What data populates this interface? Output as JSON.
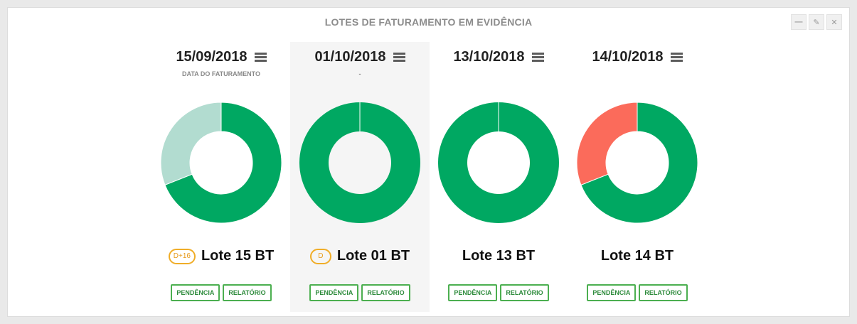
{
  "panel": {
    "title": "LOTES DE FATURAMENTO EM EVIDÊNCIA"
  },
  "window_controls": [
    {
      "icon": "minimize-icon",
      "glyph": "—"
    },
    {
      "icon": "wrench-icon",
      "glyph": "✎"
    },
    {
      "icon": "close-icon",
      "glyph": "✕"
    }
  ],
  "colors": {
    "green": "#00a862",
    "light_green": "#b2dcd0",
    "red": "#fb6b5b",
    "badge_orange": "#f0ad28"
  },
  "columns": [
    {
      "date": "15/09/2018",
      "subtitle": "DATA DO FATURAMENTO",
      "badge": "D+16",
      "lote": "Lote 15 BT",
      "pendencia": "PENDÊNCIA",
      "relatorio": "RELATÓRIO",
      "donut": [
        {
          "value": 0.69,
          "color": "#00a862"
        },
        {
          "value": 0.31,
          "color": "#b2dcd0"
        }
      ]
    },
    {
      "date": "01/10/2018",
      "subtitle": "-",
      "badge": "D",
      "lote": "Lote 01 BT",
      "pendencia": "PENDÊNCIA",
      "relatorio": "RELATÓRIO",
      "donut": [
        {
          "value": 1.0,
          "color": "#00a862"
        }
      ]
    },
    {
      "date": "13/10/2018",
      "subtitle": "",
      "badge": "",
      "lote": "Lote 13 BT",
      "pendencia": "PENDÊNCIA",
      "relatorio": "RELATÓRIO",
      "donut": [
        {
          "value": 1.0,
          "color": "#00a862"
        }
      ]
    },
    {
      "date": "14/10/2018",
      "subtitle": "",
      "badge": "",
      "lote": "Lote 14 BT",
      "pendencia": "PENDÊNCIA",
      "relatorio": "RELATÓRIO",
      "donut": [
        {
          "value": 0.69,
          "color": "#00a862"
        },
        {
          "value": 0.31,
          "color": "#fb6b5b"
        }
      ]
    }
  ]
}
